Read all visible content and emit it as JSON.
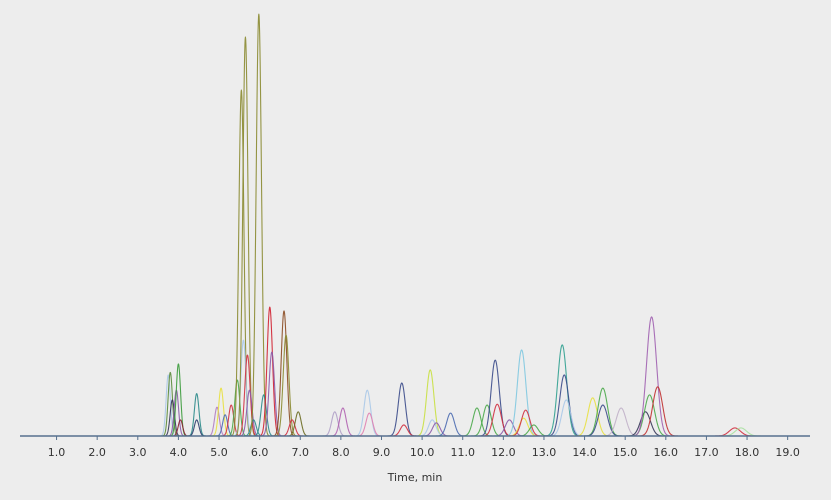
{
  "chart_data": {
    "type": "chromatogram",
    "x_label": "Time, min",
    "xlim": [
      0.1,
      19.55
    ],
    "ylim": [
      0,
      100
    ],
    "xticks": [
      {
        "value": 1,
        "label": "1.0"
      },
      {
        "value": 2,
        "label": "2.0"
      },
      {
        "value": 3,
        "label": "3.0"
      },
      {
        "value": 4,
        "label": "4.0"
      },
      {
        "value": 5,
        "label": "5.0"
      },
      {
        "value": 6,
        "label": "6.0"
      },
      {
        "value": 7,
        "label": "7.0"
      },
      {
        "value": 8,
        "label": "8.0"
      },
      {
        "value": 9,
        "label": "9.0"
      },
      {
        "value": 10,
        "label": "10.0"
      },
      {
        "value": 11,
        "label": "11.0"
      },
      {
        "value": 12,
        "label": "12.0"
      },
      {
        "value": 13,
        "label": "13.0"
      },
      {
        "value": 14,
        "label": "14.0"
      },
      {
        "value": 15,
        "label": "15.0"
      },
      {
        "value": 16,
        "label": "16.0"
      },
      {
        "value": 17,
        "label": "17.0"
      },
      {
        "value": 18,
        "label": "18.0"
      },
      {
        "value": 19,
        "label": "19.0"
      }
    ],
    "axis_color": "#56708e",
    "peaks": {
      "x": [
        3.75,
        3.8,
        3.85,
        3.95,
        4.0,
        4.05,
        4.45,
        4.45,
        4.95,
        5.05,
        5.15,
        5.3,
        5.45,
        5.55,
        5.6,
        5.65,
        5.7,
        5.75,
        5.85,
        5.98,
        6.1,
        6.25,
        6.3,
        6.6,
        6.65,
        6.8,
        6.95,
        7.85,
        8.05,
        8.65,
        8.7,
        9.5,
        9.55,
        10.2,
        10.25,
        10.35,
        10.7,
        11.35,
        11.6,
        11.8,
        11.85,
        12.15,
        12.45,
        12.5,
        12.55,
        12.75,
        13.45,
        13.5,
        13.55,
        14.2,
        14.45,
        14.45,
        14.9,
        15.5,
        15.6,
        15.65,
        15.8,
        17.7,
        17.85
      ],
      "values": [
        14.4,
        15,
        8.5,
        10.8,
        17,
        3.8,
        10,
        3.8,
        6.8,
        11.3,
        5,
        7.3,
        13.2,
        81.6,
        22.6,
        94.1,
        19.1,
        10.8,
        3.8,
        99.5,
        9.7,
        30.4,
        19.8,
        29.5,
        23.8,
        3.8,
        5.7,
        5.7,
        6.6,
        10.8,
        5.4,
        12.5,
        2.6,
        15.6,
        3.8,
        3.1,
        5.4,
        6.6,
        7.3,
        17.9,
        7.5,
        3.8,
        20.3,
        4.2,
        6.1,
        2.6,
        21.5,
        14.4,
        8.5,
        9,
        11.3,
        7.3,
        6.6,
        5.7,
        9.7,
        28.1,
        11.6,
        1.9,
        1.9
      ],
      "colors": [
        "#a8c8e8",
        "#5a8a3a",
        "#333355",
        "#8a5aa8",
        "#3a9a3a",
        "#8a2030",
        "#2a8a8a",
        "#2a3a6a",
        "#b07ac0",
        "#e8e040",
        "#4a6ab0",
        "#d03040",
        "#4aa84a",
        "#8a8a30",
        "#a8c8e8",
        "#8a8a30",
        "#d03040",
        "#8a5aa8",
        "#2a8a8a",
        "#8a8a30",
        "#2a8a8a",
        "#d02030",
        "#8a5aa8",
        "#8a4a20",
        "#8a8a30",
        "#d03040",
        "#6a6a20",
        "#b0a0c8",
        "#b060b0",
        "#a8c8e8",
        "#e080b0",
        "#3a4a8a",
        "#d03040",
        "#c8e040",
        "#a8c8e8",
        "#8a5aa8",
        "#4a6ab0",
        "#4aa84a",
        "#4aa84a",
        "#3a4a8a",
        "#d03040",
        "#8a5aa8",
        "#80c8e0",
        "#e8e040",
        "#d03040",
        "#4aa84a",
        "#30a090",
        "#3a4a8a",
        "#a8c8e8",
        "#e8e040",
        "#4aa84a",
        "#3a4a8a",
        "#c0b0c8",
        "#333355",
        "#4aa84a",
        "#a060b0",
        "#c03030",
        "#d03040",
        "#a8e0a0"
      ]
    }
  }
}
